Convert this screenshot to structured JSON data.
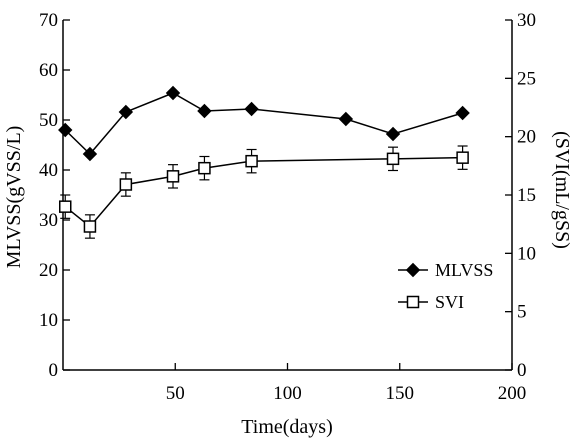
{
  "chart_data": {
    "type": "line",
    "xlabel": "Time(days)",
    "ylabel_left": "MLVSS(gVSS/L)",
    "ylabel_right": "(SVI(mL/gSS)",
    "xlim": [
      0,
      200
    ],
    "ylim_left": [
      0,
      70
    ],
    "ylim_right": [
      0,
      30
    ],
    "x_ticks": [
      "50",
      "100",
      "150",
      "200"
    ],
    "y_left_ticks": [
      "0",
      "10",
      "20",
      "30",
      "40",
      "50",
      "60",
      "70"
    ],
    "y_right_ticks": [
      "0",
      "5",
      "10",
      "15",
      "20",
      "25",
      "30"
    ],
    "grid": false,
    "legend_position": "right",
    "series": [
      {
        "name": "MLVSS",
        "axis": "left",
        "marker": "filled-diamond",
        "color": "#000000",
        "x": [
          1,
          12,
          28,
          49,
          63,
          84,
          126,
          147,
          178
        ],
        "y": [
          48.0,
          43.2,
          51.6,
          55.4,
          51.8,
          52.2,
          50.2,
          47.2,
          51.4
        ]
      },
      {
        "name": "SVI",
        "axis": "right",
        "marker": "open-square",
        "color": "#000000",
        "x": [
          1,
          12,
          28,
          49,
          63,
          84,
          147,
          178
        ],
        "y": [
          14.0,
          12.3,
          15.9,
          16.6,
          17.3,
          17.9,
          18.1,
          18.2
        ],
        "error": [
          1.0,
          1.0,
          1.0,
          1.0,
          1.0,
          1.0,
          1.0,
          1.0
        ]
      }
    ]
  }
}
